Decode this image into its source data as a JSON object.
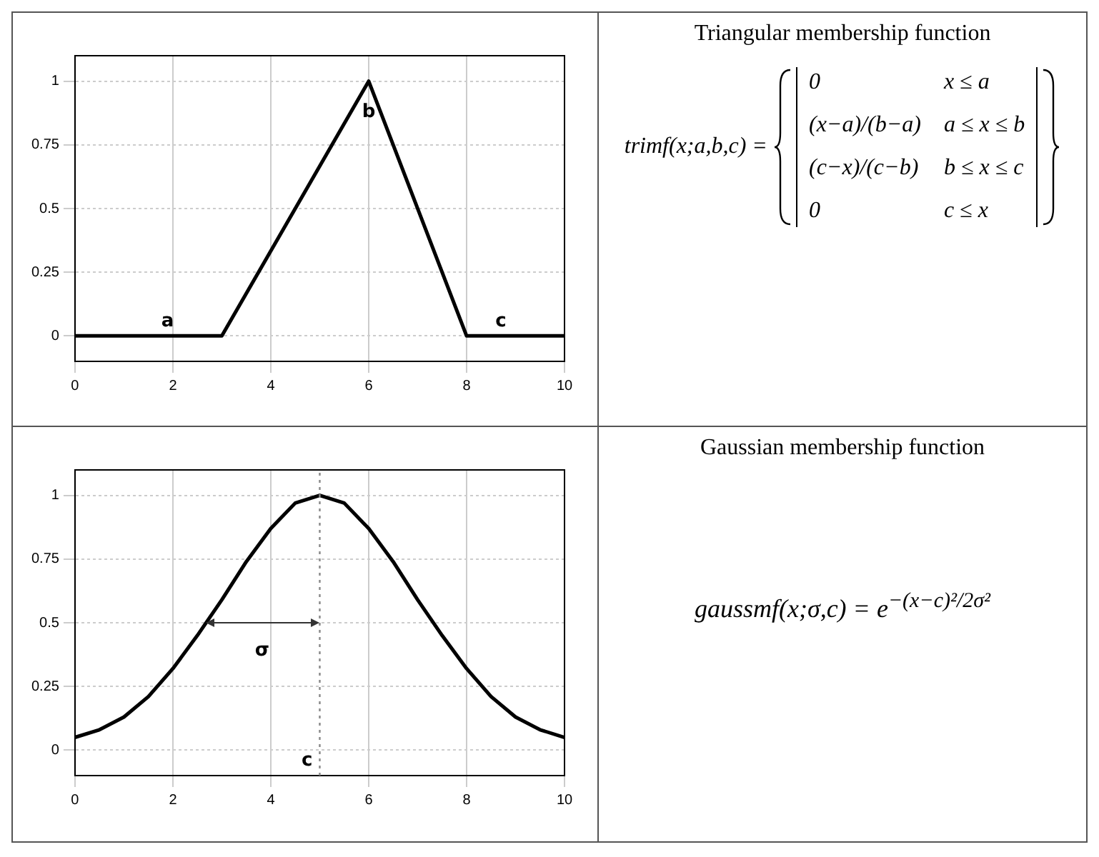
{
  "chart_data": [
    {
      "type": "line",
      "x": [
        0,
        3,
        6,
        8,
        10
      ],
      "series": [
        {
          "color": "#000000",
          "values": [
            0,
            0,
            1,
            0,
            0
          ]
        }
      ],
      "xlim": [
        0,
        10
      ],
      "xticks": [
        0,
        2,
        4,
        6,
        8,
        10
      ],
      "ylim": [
        -0.1,
        1.1
      ],
      "yticks": [
        0,
        0.25,
        0.5,
        0.75,
        1
      ],
      "grid": true,
      "legend": false,
      "marker": "none",
      "line_style": "solid",
      "annotations": [
        {
          "text": "a",
          "x": 3,
          "y": 0
        },
        {
          "text": "b",
          "x": 6,
          "y": 1
        },
        {
          "text": "c",
          "x": 8,
          "y": 0
        }
      ]
    },
    {
      "type": "other",
      "title": "Triangular membership function",
      "annotations": [
        "trimf(x;a,b,c) =",
        "0",
        "x ≤ a",
        "(x−a)/(b−a)",
        "a ≤ x ≤ b",
        "(c−x)/(c−b)",
        "b ≤ x ≤ c",
        "0",
        "c ≤ x"
      ]
    },
    {
      "type": "line",
      "x": [
        0,
        0.5,
        1,
        1.5,
        2,
        2.5,
        3,
        3.5,
        4,
        4.5,
        5,
        5.5,
        6,
        6.5,
        7,
        7.5,
        8,
        8.5,
        9,
        9.5,
        10
      ],
      "series": [
        {
          "color": "#000000",
          "values": [
            0.05,
            0.08,
            0.13,
            0.21,
            0.32,
            0.45,
            0.59,
            0.74,
            0.87,
            0.97,
            1,
            0.97,
            0.87,
            0.74,
            0.59,
            0.45,
            0.32,
            0.21,
            0.13,
            0.08,
            0.05
          ]
        }
      ],
      "xlim": [
        0,
        10
      ],
      "xticks": [
        0,
        2,
        4,
        6,
        8,
        10
      ],
      "ylim": [
        -0.1,
        1.1
      ],
      "yticks": [
        0,
        0.25,
        0.5,
        0.75,
        1
      ],
      "grid": true,
      "legend": false,
      "marker": "none",
      "line_style": "solid",
      "ref_lines": [
        {
          "axis": "x",
          "value": 5,
          "label": "c",
          "line_style": "dotted",
          "color": "#888888"
        }
      ],
      "annotations": [
        "σ"
      ]
    },
    {
      "type": "other",
      "title": "Gaussian membership function",
      "annotations": [
        "gaussmf(x;σ,c) = e$^{−(x−c)²/2σ²}$"
      ]
    }
  ]
}
